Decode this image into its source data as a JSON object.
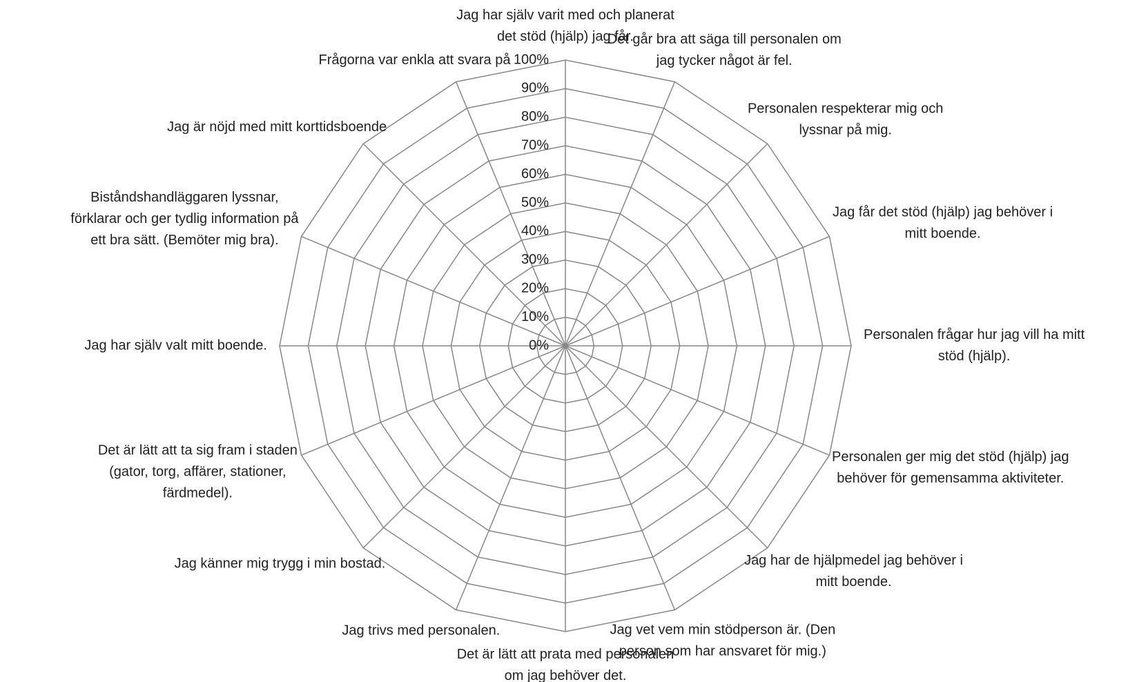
{
  "chart_data": {
    "type": "radar",
    "categories": [
      [
        "Jag har själv varit med och planerat",
        "det stöd (hjälp) jag får."
      ],
      [
        "Det går bra att säga till personalen om",
        "jag tycker något är fel."
      ],
      [
        "Personalen respekterar mig och",
        "lyssnar på mig."
      ],
      [
        "Jag får det stöd (hjälp) jag behöver i",
        "mitt boende."
      ],
      [
        "Personalen frågar hur jag vill ha mitt",
        "stöd (hjälp)."
      ],
      [
        "Personalen ger mig det stöd (hjälp) jag",
        "behöver för gemensamma aktiviteter."
      ],
      [
        "Jag har de hjälpmedel jag behöver i",
        "mitt boende."
      ],
      [
        "Jag vet vem min stödperson är. (Den",
        "person som har ansvaret för mig.)"
      ],
      [
        "Det är lätt att prata med personalen",
        "om jag behöver det."
      ],
      [
        "Jag trivs med personalen."
      ],
      [
        "Jag känner mig trygg i min bostad."
      ],
      [
        "Det är lätt att ta sig fram i staden",
        "(gator, torg, affärer, stationer,",
        "färdmedel)."
      ],
      [
        "Jag har själv valt mitt boende."
      ],
      [
        "Biståndshandläggaren lyssnar,",
        "förklarar och ger tydlig information på",
        "ett bra sätt. (Bemöter mig bra)."
      ],
      [
        "Jag är nöjd med mitt korttidsboende"
      ],
      [
        "Frågorna var enkla att svara på"
      ]
    ],
    "rlim": [
      0,
      100
    ],
    "rticks": [
      {
        "value": 0,
        "label": "0%"
      },
      {
        "value": 10,
        "label": "10%"
      },
      {
        "value": 20,
        "label": "20%"
      },
      {
        "value": 30,
        "label": "30%"
      },
      {
        "value": 40,
        "label": "40%"
      },
      {
        "value": 50,
        "label": "50%"
      },
      {
        "value": 60,
        "label": "60%"
      },
      {
        "value": 70,
        "label": "70%"
      },
      {
        "value": 80,
        "label": "80%"
      },
      {
        "value": 90,
        "label": "90%"
      },
      {
        "value": 100,
        "label": "100%"
      }
    ],
    "grid": true,
    "grid_color": "#878787"
  }
}
